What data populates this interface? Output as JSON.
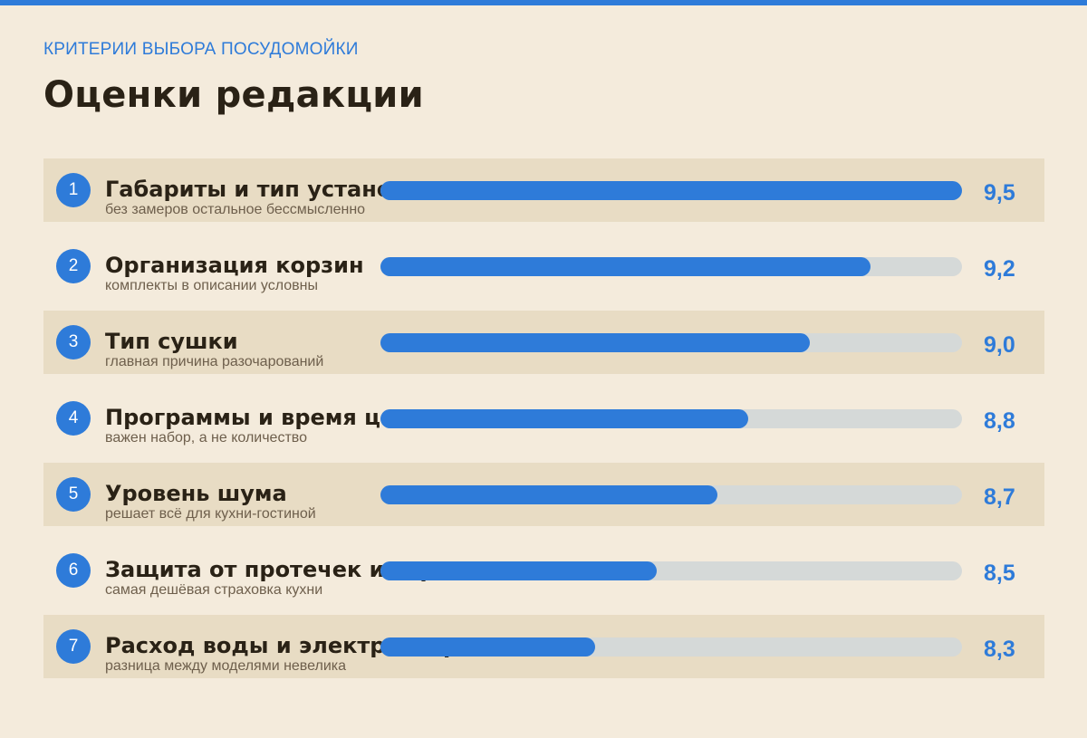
{
  "header": {
    "eyebrow": "КРИТЕРИИ ВЫБОРА ПОСУДОМОЙКИ",
    "title": "Оценки редакции"
  },
  "colors": {
    "accent": "#2e7bd9",
    "background": "#f4ebdc",
    "row_shade": "#e8dcc4",
    "track": "#d5d9d8",
    "text_dark": "#2a2216",
    "text_muted": "#6e5f4c"
  },
  "chart_data": {
    "type": "bar",
    "orientation": "horizontal",
    "title": "Оценки редакции",
    "xlim": [
      8,
      9.5
    ],
    "categories": [
      "Габариты и тип установки",
      "Организация корзин",
      "Тип сушки",
      "Программы и время цикла",
      "Уровень шума",
      "Защита от протечек и сервис",
      "Расход воды и электроэнергии"
    ],
    "rows": [
      {
        "rank": "1",
        "label": "Габариты и тип установки",
        "note": "без замеров остальное бессмысленно",
        "value": 9.5,
        "value_label": "9,5"
      },
      {
        "rank": "2",
        "label": "Организация корзин",
        "note": "комплекты в описании условны",
        "value": 9.2,
        "value_label": "9,2"
      },
      {
        "rank": "3",
        "label": "Тип сушки",
        "note": "главная причина разочарований",
        "value": 9.0,
        "value_label": "9,0"
      },
      {
        "rank": "4",
        "label": "Программы и время цикла",
        "note": "важен набор, а не количество",
        "value": 8.8,
        "value_label": "8,8"
      },
      {
        "rank": "5",
        "label": "Уровень шума",
        "note": "решает всё для кухни-гостиной",
        "value": 8.7,
        "value_label": "8,7"
      },
      {
        "rank": "6",
        "label": "Защита от протечек и сервис",
        "note": "самая дешёвая страховка кухни",
        "value": 8.5,
        "value_label": "8,5"
      },
      {
        "rank": "7",
        "label": "Расход воды и электроэнергии",
        "note": "разница между моделями невелика",
        "value": 8.3,
        "value_label": "8,3"
      }
    ]
  }
}
